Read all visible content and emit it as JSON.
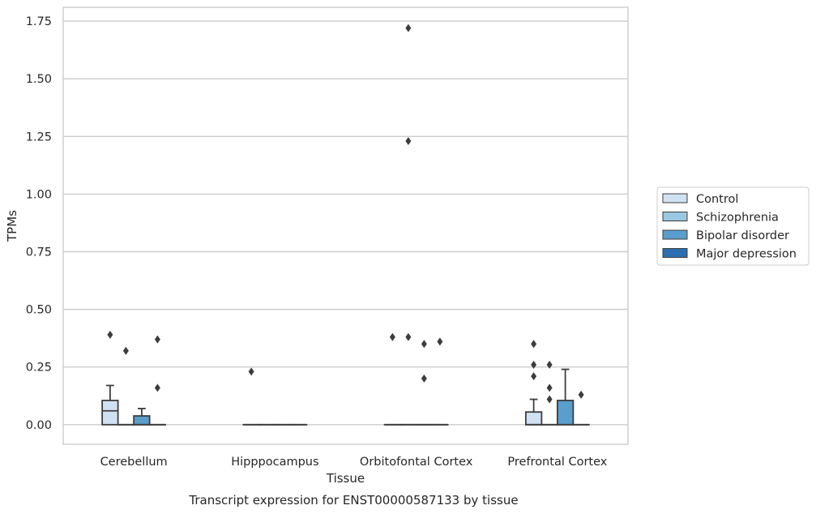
{
  "chart_data": {
    "type": "box",
    "title": "",
    "caption": "Transcript expression for ENST00000587133 by tissue",
    "xlabel": "Tissue",
    "ylabel": "TPMs",
    "ylim": [
      -0.085,
      1.81
    ],
    "yticks": [
      0.0,
      0.25,
      0.5,
      0.75,
      1.0,
      1.25,
      1.5,
      1.75
    ],
    "ytick_labels": [
      "0.00",
      "0.25",
      "0.50",
      "0.75",
      "1.00",
      "1.25",
      "1.50",
      "1.75"
    ],
    "grid": "horizontal",
    "legend_position": "right",
    "categories": [
      "Cerebellum",
      "Hipppocampus",
      "Orbitofontal Cortex",
      "Prefrontal Cortex"
    ],
    "series": [
      {
        "name": "Control",
        "color": "#d0e1f2",
        "boxes": [
          {
            "whislo": 0.0,
            "q1": 0.0,
            "med": 0.06,
            "q3": 0.105,
            "whishi": 0.17,
            "fliers": [
              0.39
            ]
          },
          {
            "whislo": 0.0,
            "q1": 0.0,
            "med": 0.0,
            "q3": 0.0,
            "whishi": 0.0,
            "fliers": [
              0.23
            ]
          },
          {
            "whislo": 0.0,
            "q1": 0.0,
            "med": 0.0,
            "q3": 0.0,
            "whishi": 0.0,
            "fliers": [
              0.38
            ]
          },
          {
            "whislo": 0.0,
            "q1": 0.0,
            "med": 0.0,
            "q3": 0.055,
            "whishi": 0.11,
            "fliers": [
              0.35,
              0.26,
              0.21
            ]
          }
        ]
      },
      {
        "name": "Schizophrenia",
        "color": "#9ac8e0",
        "boxes": [
          {
            "whislo": 0.0,
            "q1": 0.0,
            "med": 0.0,
            "q3": 0.0,
            "whishi": 0.0,
            "fliers": [
              0.32
            ]
          },
          {
            "whislo": 0.0,
            "q1": 0.0,
            "med": 0.0,
            "q3": 0.0,
            "whishi": 0.0,
            "fliers": []
          },
          {
            "whislo": 0.0,
            "q1": 0.0,
            "med": 0.0,
            "q3": 0.0,
            "whishi": 0.0,
            "fliers": [
              1.72,
              1.23,
              0.38
            ]
          },
          {
            "whislo": 0.0,
            "q1": 0.0,
            "med": 0.0,
            "q3": 0.0,
            "whishi": 0.0,
            "fliers": [
              0.26,
              0.16,
              0.11
            ]
          }
        ]
      },
      {
        "name": "Bipolar disorder",
        "color": "#5a9ecc",
        "boxes": [
          {
            "whislo": 0.0,
            "q1": 0.0,
            "med": 0.0,
            "q3": 0.038,
            "whishi": 0.07,
            "fliers": []
          },
          {
            "whislo": 0.0,
            "q1": 0.0,
            "med": 0.0,
            "q3": 0.0,
            "whishi": 0.0,
            "fliers": []
          },
          {
            "whislo": 0.0,
            "q1": 0.0,
            "med": 0.0,
            "q3": 0.0,
            "whishi": 0.0,
            "fliers": [
              0.35,
              0.2
            ]
          },
          {
            "whislo": 0.0,
            "q1": 0.0,
            "med": 0.0,
            "q3": 0.105,
            "whishi": 0.24,
            "fliers": []
          }
        ]
      },
      {
        "name": "Major depression",
        "color": "#2c6fb0",
        "boxes": [
          {
            "whislo": 0.0,
            "q1": 0.0,
            "med": 0.0,
            "q3": 0.0,
            "whishi": 0.0,
            "fliers": [
              0.37,
              0.16
            ]
          },
          {
            "whislo": 0.0,
            "q1": 0.0,
            "med": 0.0,
            "q3": 0.0,
            "whishi": 0.0,
            "fliers": []
          },
          {
            "whislo": 0.0,
            "q1": 0.0,
            "med": 0.0,
            "q3": 0.0,
            "whishi": 0.0,
            "fliers": [
              0.36
            ]
          },
          {
            "whislo": 0.0,
            "q1": 0.0,
            "med": 0.0,
            "q3": 0.0,
            "whishi": 0.0,
            "fliers": [
              0.13
            ]
          }
        ]
      }
    ]
  }
}
